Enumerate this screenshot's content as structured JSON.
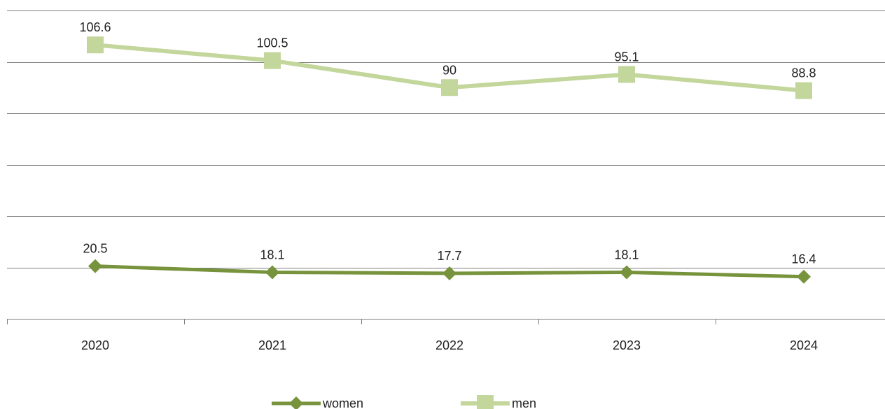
{
  "chart_data": {
    "type": "line",
    "title": "",
    "xlabel": "",
    "ylabel": "",
    "categories": [
      "2020",
      "2021",
      "2022",
      "2023",
      "2024"
    ],
    "ylim": [
      0,
      120
    ],
    "grid": true,
    "legend_position": "bottom",
    "series": [
      {
        "name": "women",
        "values": [
          20.5,
          18.1,
          17.7,
          18.1,
          16.4
        ],
        "value_labels": [
          "20.5",
          "18.1",
          "17.7",
          "18.1",
          "16.4"
        ],
        "color": "#77933c",
        "marker": "diamond"
      },
      {
        "name": "men",
        "values": [
          106.6,
          100.5,
          90,
          95.1,
          88.8
        ],
        "value_labels": [
          "106.6",
          "100.5",
          "90",
          "95.1",
          "88.8"
        ],
        "color": "#c3d69b",
        "marker": "square"
      }
    ]
  }
}
